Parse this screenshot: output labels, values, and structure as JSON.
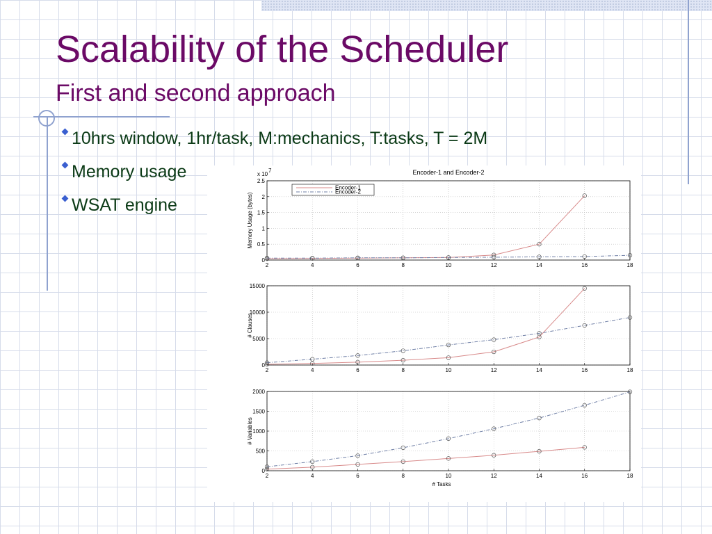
{
  "slide": {
    "title": "Scalability of the Scheduler",
    "subtitle": "First and second approach",
    "bullets": [
      "10hrs window, 1hr/task, M:mechanics, T:tasks, T = 2M",
      "Memory usage",
      "WSAT engine"
    ]
  },
  "colors": {
    "title": "#6b0a66",
    "bullet_text": "#0b3a16",
    "bullet_marker": "#3a5fd0",
    "encoder1": "#d88a8a",
    "encoder2": "#6f7fa6",
    "marker": "#555555"
  },
  "chart_data": [
    {
      "type": "line",
      "title": "Encoder-1  and  Encoder-2",
      "ylabel": "Memory Usage (bytes)",
      "y_multiplier": "x 10",
      "y_exponent": "7",
      "xlim": [
        2,
        18
      ],
      "ylim": [
        0,
        2.5
      ],
      "yticks": [
        0,
        0.5,
        1,
        1.5,
        2,
        2.5
      ],
      "ytick_labels": [
        "0",
        "0.5",
        "1",
        "1.5",
        "2",
        "2.5"
      ],
      "xticks": [
        2,
        4,
        6,
        8,
        10,
        12,
        14,
        16,
        18
      ],
      "grid": true,
      "legend": "top-left",
      "series": [
        {
          "name": "Encoder-1",
          "x": [
            2,
            4,
            6,
            8,
            10,
            12,
            14,
            16
          ],
          "y": [
            0.04,
            0.05,
            0.06,
            0.07,
            0.08,
            0.16,
            0.5,
            2.03
          ]
        },
        {
          "name": "Encoder-2",
          "x": [
            2,
            4,
            6,
            8,
            10,
            12,
            14,
            16,
            18
          ],
          "y": [
            0.06,
            0.06,
            0.07,
            0.07,
            0.08,
            0.09,
            0.1,
            0.11,
            0.15
          ]
        }
      ]
    },
    {
      "type": "line",
      "ylabel": "# Clauses",
      "xlim": [
        2,
        18
      ],
      "ylim": [
        0,
        15000
      ],
      "yticks": [
        0,
        5000,
        10000,
        15000
      ],
      "ytick_labels": [
        "0",
        "5000",
        "10000",
        "15000"
      ],
      "xticks": [
        2,
        4,
        6,
        8,
        10,
        12,
        14,
        16,
        18
      ],
      "grid": true,
      "series": [
        {
          "name": "Encoder-1",
          "x": [
            2,
            4,
            6,
            8,
            10,
            12,
            14,
            16
          ],
          "y": [
            150,
            300,
            550,
            900,
            1400,
            2500,
            5300,
            14500
          ]
        },
        {
          "name": "Encoder-2",
          "x": [
            2,
            4,
            6,
            8,
            10,
            12,
            14,
            16,
            18
          ],
          "y": [
            450,
            1100,
            1800,
            2700,
            3800,
            4800,
            6000,
            7500,
            9000
          ]
        }
      ]
    },
    {
      "type": "line",
      "ylabel": "# Variables",
      "xlabel": "# Tasks",
      "xlim": [
        2,
        18
      ],
      "ylim": [
        0,
        2000
      ],
      "yticks": [
        0,
        500,
        1000,
        1500,
        2000
      ],
      "ytick_labels": [
        "0",
        "500",
        "1000",
        "1500",
        "2000"
      ],
      "xticks": [
        2,
        4,
        6,
        8,
        10,
        12,
        14,
        16,
        18
      ],
      "grid": true,
      "series": [
        {
          "name": "Encoder-1",
          "x": [
            2,
            4,
            6,
            8,
            10,
            12,
            14,
            16
          ],
          "y": [
            40,
            90,
            160,
            230,
            310,
            390,
            490,
            590
          ]
        },
        {
          "name": "Encoder-2",
          "x": [
            2,
            4,
            6,
            8,
            10,
            12,
            14,
            16,
            18
          ],
          "y": [
            100,
            230,
            380,
            580,
            810,
            1060,
            1330,
            1650,
            1990
          ]
        }
      ]
    }
  ]
}
